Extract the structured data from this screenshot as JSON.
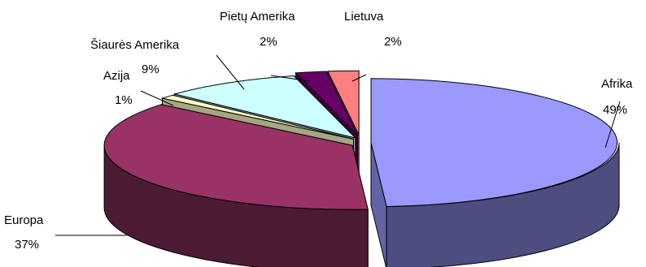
{
  "chart_data": {
    "type": "pie",
    "title": "",
    "style": "3d-exploded",
    "slices": [
      {
        "label": "Afrika",
        "value": 49,
        "value_label": "49%",
        "color": "#9999FF"
      },
      {
        "label": "Europa",
        "value": 37,
        "value_label": "37%",
        "color": "#993366"
      },
      {
        "label": "Azija",
        "value": 1,
        "value_label": "1%",
        "color": "#FFFFCC"
      },
      {
        "label": "Šiaurės Amerika",
        "value": 9,
        "value_label": "9%",
        "color": "#CCFFFF"
      },
      {
        "label": "Pietų Amerika",
        "value": 2,
        "value_label": "2%",
        "color": "#660066"
      },
      {
        "label": "Lietuva",
        "value": 2,
        "value_label": "2%",
        "color": "#FF8080"
      }
    ]
  }
}
